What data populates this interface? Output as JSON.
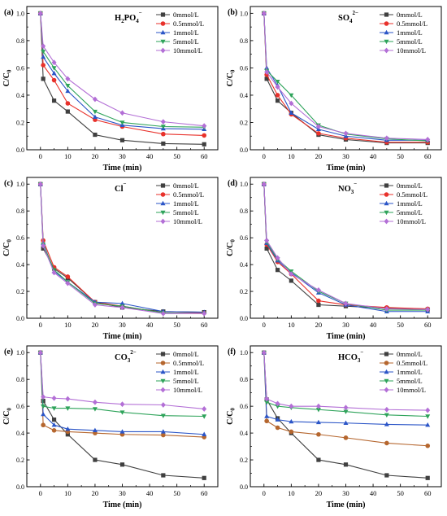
{
  "colors": {
    "s0": "#404040",
    "s05": "#e8312b",
    "s05_carbonate": "#b5662e",
    "s1": "#2b55c7",
    "s5": "#2ea35a",
    "s10": "#b36fd6"
  },
  "chart_data": [
    {
      "type": "line",
      "panel_label": "(a)",
      "title_main": "H",
      "title_sub1": "2",
      "title_mid": "PO",
      "title_sub2": "4",
      "title_sup": "−",
      "xlabel": "Time (min)",
      "ylabel_main": "C/C",
      "ylabel_sub": "0",
      "xlim": [
        -5,
        65
      ],
      "ylim": [
        0.0,
        1.05
      ],
      "xticks": [
        "0",
        "10",
        "20",
        "30",
        "40",
        "50",
        "60"
      ],
      "yticks": [
        "0.0",
        "0.2",
        "0.4",
        "0.6",
        "0.8",
        "1.0"
      ],
      "x": [
        0,
        1,
        5,
        10,
        20,
        30,
        45,
        60
      ],
      "legend_position": "top-right",
      "series": [
        {
          "name": "0mmol/L",
          "color_key": "s0",
          "marker": "square",
          "values": [
            1.0,
            0.52,
            0.36,
            0.28,
            0.11,
            0.07,
            0.045,
            0.04
          ]
        },
        {
          "name": "0.5mmol/L",
          "color_key": "s05",
          "marker": "circle",
          "values": [
            1.0,
            0.62,
            0.51,
            0.34,
            0.22,
            0.17,
            0.115,
            0.105
          ]
        },
        {
          "name": "1mmol/L",
          "color_key": "s1",
          "marker": "triangle-up",
          "values": [
            1.0,
            0.68,
            0.56,
            0.43,
            0.24,
            0.18,
            0.155,
            0.15
          ]
        },
        {
          "name": "5mmol/L",
          "color_key": "s5",
          "marker": "triangle-down",
          "values": [
            1.0,
            0.72,
            0.6,
            0.47,
            0.28,
            0.2,
            0.17,
            0.165
          ]
        },
        {
          "name": "10mmol/L",
          "color_key": "s10",
          "marker": "diamond",
          "values": [
            1.0,
            0.76,
            0.64,
            0.52,
            0.37,
            0.27,
            0.205,
            0.175
          ]
        }
      ]
    },
    {
      "type": "line",
      "panel_label": "(b)",
      "title_main": "SO",
      "title_sub1": "4",
      "title_mid": "",
      "title_sub2": "",
      "title_sup": "2−",
      "xlabel": "Time (min)",
      "ylabel_main": "C/C",
      "ylabel_sub": "0",
      "xlim": [
        -5,
        65
      ],
      "ylim": [
        0.0,
        1.05
      ],
      "xticks": [
        "0",
        "10",
        "20",
        "30",
        "40",
        "50",
        "60"
      ],
      "yticks": [
        "0.0",
        "0.2",
        "0.4",
        "0.6",
        "0.8",
        "1.0"
      ],
      "x": [
        0,
        1,
        5,
        10,
        20,
        30,
        45,
        60
      ],
      "legend_position": "top-right",
      "series": [
        {
          "name": "0mmol/L",
          "color_key": "s0",
          "marker": "square",
          "values": [
            1.0,
            0.52,
            0.36,
            0.27,
            0.11,
            0.075,
            0.05,
            0.05
          ]
        },
        {
          "name": "0.5mmol/L",
          "color_key": "s05",
          "marker": "circle",
          "values": [
            1.0,
            0.55,
            0.4,
            0.26,
            0.12,
            0.085,
            0.055,
            0.055
          ]
        },
        {
          "name": "1mmol/L",
          "color_key": "s1",
          "marker": "triangle-up",
          "values": [
            1.0,
            0.6,
            0.47,
            0.27,
            0.15,
            0.1,
            0.07,
            0.07
          ]
        },
        {
          "name": "5mmol/L",
          "color_key": "s5",
          "marker": "triangle-down",
          "values": [
            1.0,
            0.58,
            0.5,
            0.4,
            0.18,
            0.115,
            0.08,
            0.065
          ]
        },
        {
          "name": "10mmol/L",
          "color_key": "s10",
          "marker": "diamond",
          "values": [
            1.0,
            0.57,
            0.46,
            0.34,
            0.17,
            0.12,
            0.085,
            0.075
          ]
        }
      ]
    },
    {
      "type": "line",
      "panel_label": "(c)",
      "title_main": "Cl",
      "title_sub1": "",
      "title_mid": "",
      "title_sub2": "",
      "title_sup": "−",
      "xlabel": "Time (min)",
      "ylabel_main": "C/C",
      "ylabel_sub": "0",
      "xlim": [
        -5,
        65
      ],
      "ylim": [
        0.0,
        1.05
      ],
      "xticks": [
        "0",
        "10",
        "20",
        "30",
        "40",
        "50",
        "60"
      ],
      "yticks": [
        "0.0",
        "0.2",
        "0.4",
        "0.6",
        "0.8",
        "1.0"
      ],
      "x": [
        0,
        1,
        5,
        10,
        20,
        30,
        45,
        60
      ],
      "legend_position": "top-right",
      "series": [
        {
          "name": "0mmol/L",
          "color_key": "s0",
          "marker": "square",
          "values": [
            1.0,
            0.52,
            0.37,
            0.3,
            0.12,
            0.08,
            0.05,
            0.045
          ]
        },
        {
          "name": "0.5mmol/L",
          "color_key": "s05",
          "marker": "circle",
          "values": [
            1.0,
            0.58,
            0.38,
            0.31,
            0.12,
            0.09,
            0.04,
            0.04
          ]
        },
        {
          "name": "1mmol/L",
          "color_key": "s1",
          "marker": "triangle-up",
          "values": [
            1.0,
            0.56,
            0.35,
            0.27,
            0.12,
            0.11,
            0.05,
            0.045
          ]
        },
        {
          "name": "5mmol/L",
          "color_key": "s5",
          "marker": "triangle-down",
          "values": [
            1.0,
            0.55,
            0.36,
            0.27,
            0.11,
            0.09,
            0.04,
            0.035
          ]
        },
        {
          "name": "10mmol/L",
          "color_key": "s10",
          "marker": "diamond",
          "values": [
            1.0,
            0.54,
            0.34,
            0.26,
            0.1,
            0.08,
            0.035,
            0.035
          ]
        }
      ]
    },
    {
      "type": "line",
      "panel_label": "(d)",
      "title_main": "NO",
      "title_sub1": "3",
      "title_mid": "",
      "title_sub2": "",
      "title_sup": "−",
      "xlabel": "Time (min)",
      "ylabel_main": "C/C",
      "ylabel_sub": "0",
      "xlim": [
        -5,
        65
      ],
      "ylim": [
        0.0,
        1.05
      ],
      "xticks": [
        "0",
        "10",
        "20",
        "30",
        "40",
        "50",
        "60"
      ],
      "yticks": [
        "0.0",
        "0.2",
        "0.4",
        "0.6",
        "0.8",
        "1.0"
      ],
      "x": [
        0,
        1,
        5,
        10,
        20,
        30,
        45,
        60
      ],
      "legend_position": "top-right",
      "series": [
        {
          "name": "0mmol/L",
          "color_key": "s0",
          "marker": "square",
          "values": [
            1.0,
            0.52,
            0.36,
            0.28,
            0.1,
            0.09,
            0.075,
            0.065
          ]
        },
        {
          "name": "0.5mmol/L",
          "color_key": "s05",
          "marker": "circle",
          "values": [
            1.0,
            0.55,
            0.42,
            0.33,
            0.13,
            0.1,
            0.08,
            0.07
          ]
        },
        {
          "name": "1mmol/L",
          "color_key": "s1",
          "marker": "triangle-up",
          "values": [
            1.0,
            0.56,
            0.43,
            0.34,
            0.19,
            0.1,
            0.05,
            0.05
          ]
        },
        {
          "name": "5mmol/L",
          "color_key": "s5",
          "marker": "triangle-down",
          "values": [
            1.0,
            0.57,
            0.44,
            0.35,
            0.2,
            0.11,
            0.06,
            0.06
          ]
        },
        {
          "name": "10mmol/L",
          "color_key": "s10",
          "marker": "diamond",
          "values": [
            1.0,
            0.58,
            0.45,
            0.33,
            0.21,
            0.11,
            0.07,
            0.065
          ]
        }
      ]
    },
    {
      "type": "line",
      "panel_label": "(e)",
      "title_main": "CO",
      "title_sub1": "3",
      "title_mid": "",
      "title_sub2": "",
      "title_sup": "2−",
      "xlabel": "Time (min)",
      "ylabel_main": "C/C",
      "ylabel_sub": "0",
      "xlim": [
        -5,
        65
      ],
      "ylim": [
        0.0,
        1.05
      ],
      "xticks": [
        "0",
        "10",
        "20",
        "30",
        "40",
        "50",
        "60"
      ],
      "yticks": [
        "0.0",
        "0.2",
        "0.4",
        "0.6",
        "0.8",
        "1.0"
      ],
      "x": [
        0,
        1,
        5,
        10,
        20,
        30,
        45,
        60
      ],
      "legend_position": "top-right",
      "series": [
        {
          "name": "0mmol/L",
          "color_key": "s0",
          "marker": "square",
          "values": [
            1.0,
            0.64,
            0.5,
            0.39,
            0.2,
            0.165,
            0.085,
            0.065
          ]
        },
        {
          "name": "0.5mmol/L",
          "color_key": "s05_carbonate",
          "marker": "circle",
          "values": [
            1.0,
            0.46,
            0.42,
            0.41,
            0.4,
            0.39,
            0.385,
            0.37
          ]
        },
        {
          "name": "1mmol/L",
          "color_key": "s1",
          "marker": "triangle-up",
          "values": [
            1.0,
            0.54,
            0.46,
            0.43,
            0.42,
            0.41,
            0.41,
            0.39
          ]
        },
        {
          "name": "5mmol/L",
          "color_key": "s5",
          "marker": "triangle-down",
          "values": [
            1.0,
            0.6,
            0.585,
            0.585,
            0.58,
            0.555,
            0.53,
            0.525
          ]
        },
        {
          "name": "10mmol/L",
          "color_key": "s10",
          "marker": "diamond",
          "values": [
            1.0,
            0.67,
            0.66,
            0.655,
            0.63,
            0.615,
            0.61,
            0.58
          ]
        }
      ]
    },
    {
      "type": "line",
      "panel_label": "(f)",
      "title_main": "HCO",
      "title_sub1": "3",
      "title_mid": "",
      "title_sub2": "",
      "title_sup": "−",
      "xlabel": "Time (min)",
      "ylabel_main": "C/C",
      "ylabel_sub": "0",
      "xlim": [
        -5,
        65
      ],
      "ylim": [
        0.0,
        1.05
      ],
      "xticks": [
        "0",
        "10",
        "20",
        "30",
        "40",
        "50",
        "60"
      ],
      "yticks": [
        "0.0",
        "0.2",
        "0.4",
        "0.6",
        "0.8",
        "1.0"
      ],
      "x": [
        0,
        1,
        5,
        10,
        20,
        30,
        45,
        60
      ],
      "legend_position": "top-right",
      "series": [
        {
          "name": "0mmol/L",
          "color_key": "s0",
          "marker": "square",
          "values": [
            1.0,
            0.65,
            0.51,
            0.4,
            0.2,
            0.165,
            0.085,
            0.065
          ]
        },
        {
          "name": "0.5mmol/L",
          "color_key": "s05_carbonate",
          "marker": "circle",
          "values": [
            1.0,
            0.49,
            0.44,
            0.41,
            0.39,
            0.365,
            0.325,
            0.305
          ]
        },
        {
          "name": "1mmol/L",
          "color_key": "s1",
          "marker": "triangle-up",
          "values": [
            1.0,
            0.525,
            0.5,
            0.485,
            0.48,
            0.475,
            0.465,
            0.46
          ]
        },
        {
          "name": "5mmol/L",
          "color_key": "s5",
          "marker": "triangle-down",
          "values": [
            1.0,
            0.63,
            0.6,
            0.59,
            0.575,
            0.56,
            0.535,
            0.525
          ]
        },
        {
          "name": "10mmol/L",
          "color_key": "s10",
          "marker": "diamond",
          "values": [
            1.0,
            0.655,
            0.62,
            0.6,
            0.6,
            0.59,
            0.575,
            0.57
          ]
        }
      ]
    }
  ]
}
